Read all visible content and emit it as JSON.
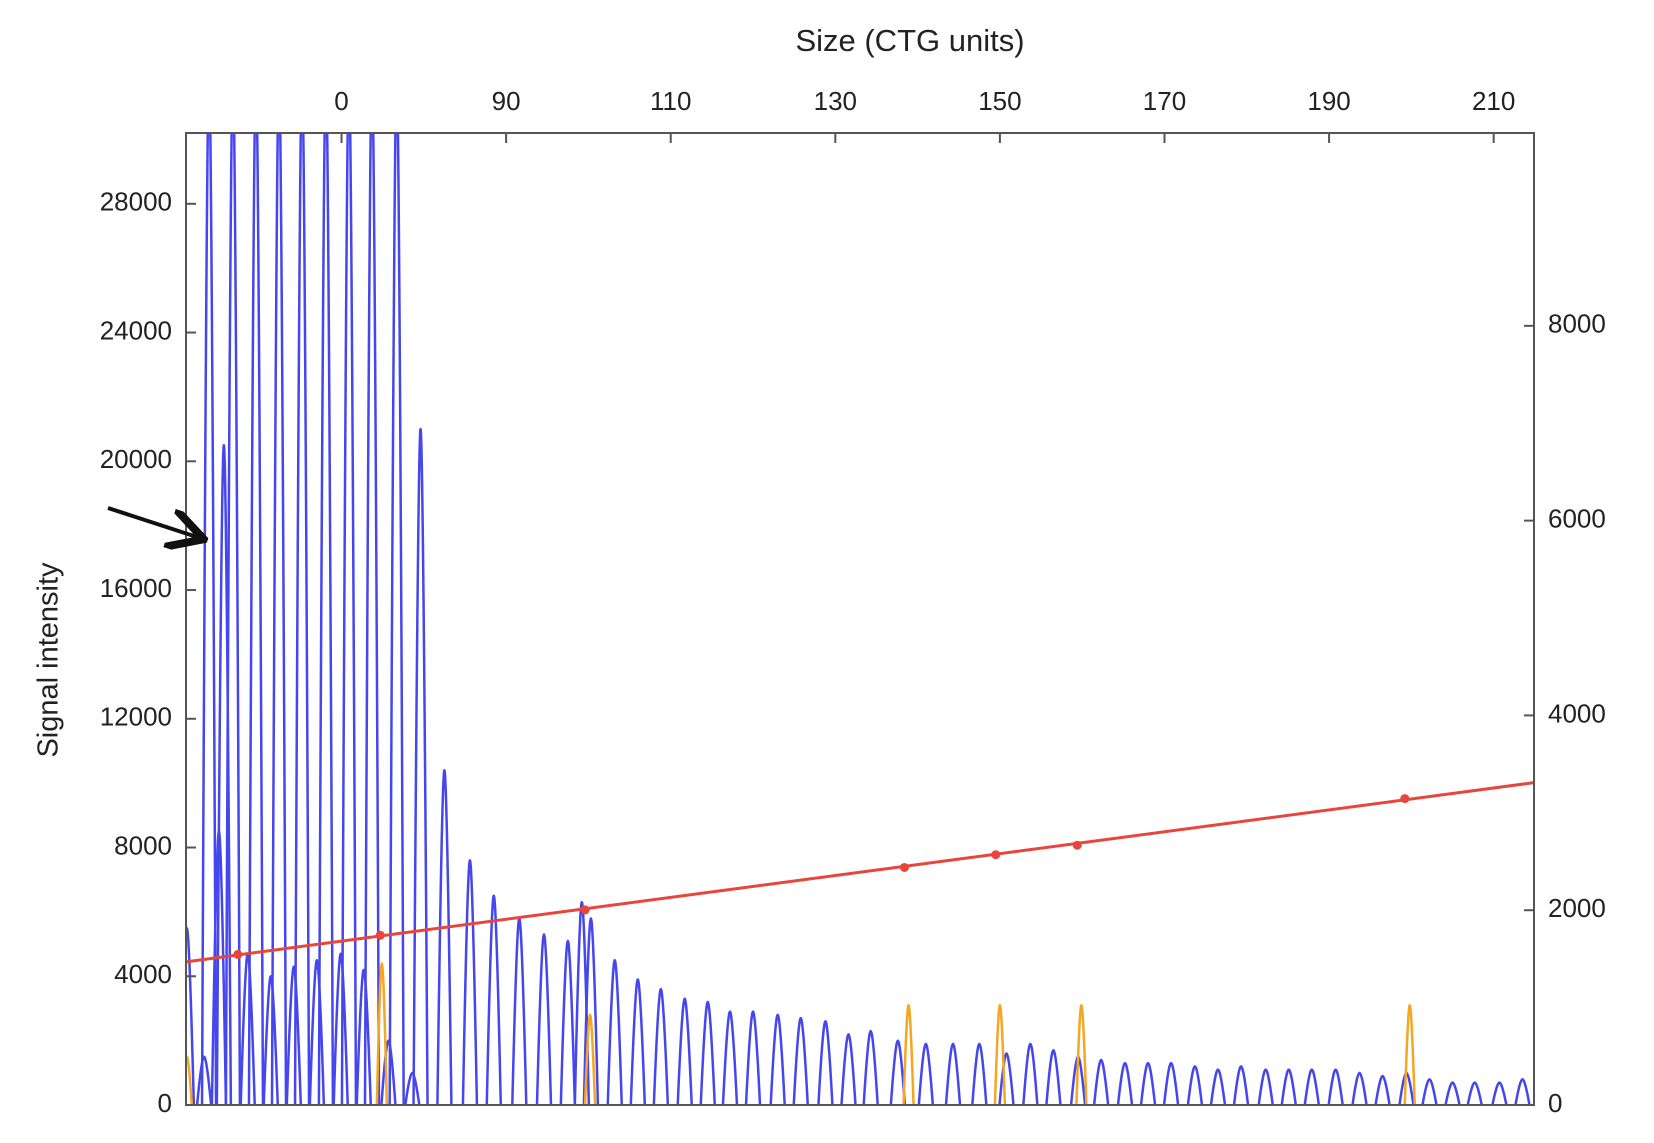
{
  "chart_data": {
    "type": "line",
    "title": "Size (CTG units)",
    "y_label": "Signal intensity",
    "xlim": [
      51.1,
      214.9
    ],
    "xticks": [
      {
        "value": 70,
        "label": "0"
      },
      90,
      110,
      130,
      150,
      170,
      190,
      210
    ],
    "ylim": [
      0,
      30200
    ],
    "yticks": [
      0,
      4000,
      8000,
      12000,
      16000,
      20000,
      24000,
      28000
    ],
    "y2lim": [
      0,
      9980
    ],
    "y2ticks": [
      0,
      2000,
      4000,
      6000,
      8000
    ],
    "series": [
      {
        "color": "#4646ee",
        "style": "peaks",
        "x": [
          51.2,
          53.3,
          53.9,
          55.1,
          55.7,
          56.8,
          58.6,
          59.6,
          61.4,
          62.4,
          64.2,
          65.2,
          67.0,
          68.1,
          69.9,
          70.9,
          72.7,
          73.7,
          75.7,
          76.7,
          78.6,
          79.6,
          82.5,
          85.6,
          88.5,
          91.6,
          94.6,
          97.5,
          99.2,
          100.3,
          103.2,
          106.0,
          108.8,
          111.7,
          114.5,
          117.2,
          120.0,
          123.0,
          125.8,
          128.8,
          131.6,
          134.3,
          137.6,
          141.0,
          144.3,
          147.5,
          150.8,
          153.7,
          156.5,
          159.5,
          162.3,
          165.2,
          168.0,
          170.8,
          173.7,
          176.5,
          179.3,
          182.3,
          185.1,
          187.9,
          190.8,
          193.7,
          196.5,
          199.4,
          202.2,
          205.0,
          207.7,
          210.7,
          213.5
        ],
        "values": [
          5500,
          1500,
          32000,
          8500,
          20500,
          32000,
          4700,
          32000,
          4000,
          32000,
          4300,
          32000,
          4500,
          32000,
          4700,
          32000,
          4200,
          32000,
          2000,
          32000,
          1000,
          21000,
          10400,
          7600,
          6500,
          5800,
          5300,
          5100,
          6300,
          5800,
          4500,
          3900,
          3600,
          3300,
          3200,
          2900,
          2900,
          2800,
          2700,
          2600,
          2200,
          2300,
          2000,
          1900,
          1900,
          1900,
          1600,
          1900,
          1700,
          1500,
          1400,
          1300,
          1300,
          1300,
          1200,
          1100,
          1200,
          1100,
          1100,
          1100,
          1100,
          1000,
          900,
          1000,
          800,
          700,
          700,
          700,
          800
        ]
      },
      {
        "color": "#f5a623",
        "style": "peaks",
        "x": [
          51.2,
          74.9,
          100.2,
          138.9,
          150.0,
          159.9,
          199.8
        ],
        "values": [
          1500,
          4400,
          2800,
          3100,
          3100,
          3100,
          3100
        ]
      },
      {
        "color": "#e8453c",
        "style": "line",
        "axis": "y2",
        "x": [
          51.1,
          214.9
        ],
        "values": [
          1470,
          3310
        ]
      },
      {
        "color": "#e8453c",
        "style": "markers",
        "axis": "y2",
        "x": [
          57.4,
          74.7,
          99.6,
          138.4,
          149.5,
          159.4,
          199.2
        ],
        "values": [
          1546,
          1742,
          2003,
          2439,
          2570,
          2667,
          3146
        ]
      }
    ]
  }
}
